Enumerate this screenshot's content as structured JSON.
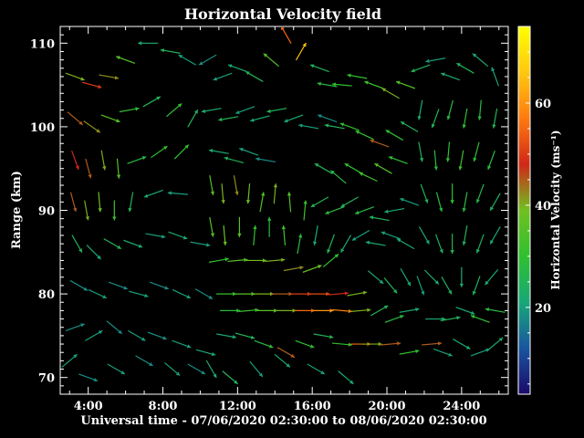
{
  "chart_data": {
    "type": "quiver",
    "title": "Horizontal Velocity field",
    "xlabel": "Universal time - 07/06/2020 02:30:00 to 08/06/2020 02:30:00",
    "ylabel": "Range (km)",
    "xlim": [
      2.5,
      26.5
    ],
    "ylim": [
      68,
      112
    ],
    "x_ticks": [
      4,
      8,
      12,
      16,
      20,
      24
    ],
    "x_tick_labels": [
      "4:00",
      "8:00",
      "12:00",
      "16:00",
      "20:00",
      "24:00"
    ],
    "y_ticks": [
      70,
      80,
      90,
      100,
      110
    ],
    "y_tick_labels": [
      "70",
      "80",
      "90",
      "100",
      "110"
    ],
    "grid": false,
    "colorbar": {
      "label": "Horizontal Velocity (ms⁻¹)",
      "range": [
        3,
        75
      ],
      "ticks": [
        20,
        40,
        60
      ],
      "colormap": [
        "#1a0a6a",
        "#1a55a0",
        "#18a878",
        "#30c030",
        "#70c020",
        "#d02818",
        "#ff7a10",
        "#ffc810",
        "#ffff00"
      ]
    },
    "vectors": {
      "description_units": "x in hours UT, y in km range, speed in m/s, direction in degrees (0 = toward +x / right, 90 = toward +y / up)",
      "points": [
        [
          3.3,
          106,
          40,
          -20
        ],
        [
          4.2,
          105,
          50,
          -15
        ],
        [
          5.1,
          106,
          42,
          -10
        ],
        [
          6.0,
          108,
          35,
          160
        ],
        [
          7.2,
          110,
          22,
          180
        ],
        [
          8.4,
          109,
          25,
          170
        ],
        [
          9.3,
          108,
          20,
          150
        ],
        [
          3.3,
          101,
          45,
          -40
        ],
        [
          4.2,
          100,
          42,
          -35
        ],
        [
          5.2,
          101,
          35,
          -20
        ],
        [
          6.2,
          102,
          30,
          10
        ],
        [
          7.4,
          103,
          25,
          30
        ],
        [
          8.6,
          102,
          30,
          40
        ],
        [
          9.6,
          101,
          25,
          60
        ],
        [
          3.3,
          96,
          48,
          -70
        ],
        [
          4.0,
          95,
          45,
          -75
        ],
        [
          4.8,
          96,
          40,
          -80
        ],
        [
          5.6,
          95,
          35,
          -85
        ],
        [
          6.6,
          96,
          28,
          20
        ],
        [
          7.8,
          97,
          30,
          35
        ],
        [
          9.0,
          97,
          30,
          45
        ],
        [
          3.2,
          91,
          45,
          -75
        ],
        [
          3.9,
          90,
          40,
          -80
        ],
        [
          4.6,
          91,
          38,
          -85
        ],
        [
          5.4,
          90,
          32,
          -90
        ],
        [
          6.3,
          91,
          25,
          -100
        ],
        [
          7.5,
          92,
          22,
          -160
        ],
        [
          8.8,
          92,
          20,
          175
        ],
        [
          3.4,
          86,
          25,
          -60
        ],
        [
          4.3,
          85,
          22,
          -45
        ],
        [
          5.3,
          86,
          25,
          -30
        ],
        [
          6.4,
          86,
          22,
          -20
        ],
        [
          7.6,
          87,
          20,
          -10
        ],
        [
          8.8,
          87,
          22,
          -20
        ],
        [
          10.0,
          86,
          20,
          -10
        ],
        [
          3.5,
          81,
          18,
          -30
        ],
        [
          4.5,
          80,
          20,
          -25
        ],
        [
          5.6,
          81,
          18,
          -20
        ],
        [
          6.7,
          80,
          20,
          -15
        ],
        [
          7.8,
          81,
          18,
          -20
        ],
        [
          9.0,
          80,
          20,
          -25
        ],
        [
          10.2,
          80,
          18,
          -30
        ],
        [
          3.3,
          76,
          18,
          20
        ],
        [
          4.3,
          75,
          20,
          30
        ],
        [
          5.4,
          76,
          18,
          -40
        ],
        [
          6.6,
          75,
          20,
          -30
        ],
        [
          7.7,
          75,
          18,
          -20
        ],
        [
          9.0,
          74,
          20,
          -20
        ],
        [
          10.3,
          73,
          22,
          -15
        ],
        [
          3.0,
          72,
          20,
          40
        ],
        [
          4.0,
          70,
          18,
          -20
        ],
        [
          5.5,
          71,
          20,
          -30
        ],
        [
          7.0,
          72,
          18,
          -30
        ],
        [
          8.5,
          71,
          20,
          -40
        ],
        [
          9.8,
          71,
          18,
          -30
        ],
        [
          10.4,
          108,
          18,
          -150
        ],
        [
          11.2,
          106,
          20,
          -160
        ],
        [
          12.0,
          107,
          22,
          160
        ],
        [
          12.9,
          106,
          25,
          150
        ],
        [
          13.8,
          108,
          35,
          140
        ],
        [
          14.6,
          111,
          55,
          120
        ],
        [
          15.4,
          109,
          65,
          60
        ],
        [
          16.4,
          107,
          25,
          160
        ],
        [
          10.6,
          102,
          22,
          -170
        ],
        [
          11.5,
          101,
          25,
          -170
        ],
        [
          12.4,
          102,
          20,
          -160
        ],
        [
          13.2,
          101,
          22,
          -165
        ],
        [
          14.1,
          102,
          25,
          -170
        ],
        [
          15.0,
          101,
          22,
          -160
        ],
        [
          15.8,
          100,
          20,
          170
        ],
        [
          16.8,
          101,
          18,
          160
        ],
        [
          11.0,
          97,
          22,
          170
        ],
        [
          11.8,
          96,
          25,
          165
        ],
        [
          12.6,
          97,
          20,
          160
        ],
        [
          13.5,
          96,
          18,
          170
        ],
        [
          10.6,
          93,
          35,
          -80
        ],
        [
          11.2,
          92,
          40,
          -85
        ],
        [
          11.9,
          93,
          42,
          -80
        ],
        [
          12.6,
          92,
          38,
          -95
        ],
        [
          13.3,
          91,
          35,
          80
        ],
        [
          14.0,
          92,
          40,
          85
        ],
        [
          14.8,
          91,
          35,
          95
        ],
        [
          15.6,
          90,
          32,
          85
        ],
        [
          10.6,
          88,
          35,
          -80
        ],
        [
          11.3,
          87,
          38,
          -85
        ],
        [
          12.1,
          88,
          36,
          -90
        ],
        [
          12.9,
          87,
          30,
          85
        ],
        [
          13.7,
          88,
          28,
          90
        ],
        [
          14.5,
          87,
          32,
          95
        ],
        [
          15.3,
          86,
          28,
          80
        ],
        [
          11.0,
          84,
          30,
          10
        ],
        [
          12.0,
          84,
          35,
          5
        ],
        [
          13.0,
          84,
          38,
          0
        ],
        [
          14.0,
          84,
          40,
          5
        ],
        [
          15.0,
          83,
          42,
          10
        ],
        [
          16.0,
          83,
          38,
          20
        ],
        [
          17.0,
          84,
          30,
          40
        ],
        [
          11.4,
          80,
          30,
          0
        ],
        [
          12.4,
          80,
          35,
          0
        ],
        [
          13.4,
          80,
          40,
          0
        ],
        [
          14.4,
          80,
          45,
          0
        ],
        [
          15.4,
          80,
          50,
          0
        ],
        [
          16.4,
          80,
          52,
          0
        ],
        [
          17.4,
          80,
          48,
          5
        ],
        [
          18.4,
          80,
          40,
          10
        ],
        [
          11.6,
          78,
          28,
          0
        ],
        [
          12.6,
          78,
          32,
          5
        ],
        [
          13.6,
          78,
          36,
          0
        ],
        [
          14.6,
          78,
          40,
          0
        ],
        [
          15.6,
          78,
          55,
          0
        ],
        [
          16.6,
          78,
          60,
          0
        ],
        [
          17.6,
          78,
          58,
          -5
        ],
        [
          18.6,
          78,
          40,
          5
        ],
        [
          11.4,
          75,
          22,
          -10
        ],
        [
          12.4,
          75,
          25,
          -15
        ],
        [
          13.4,
          74,
          28,
          -20
        ],
        [
          14.6,
          73,
          45,
          -30
        ],
        [
          15.6,
          74,
          30,
          -20
        ],
        [
          16.6,
          75,
          25,
          -10
        ],
        [
          17.6,
          74,
          30,
          -5
        ],
        [
          18.6,
          74,
          55,
          0
        ],
        [
          10.6,
          71,
          22,
          -60
        ],
        [
          11.6,
          70,
          25,
          -40
        ],
        [
          13.0,
          71,
          20,
          -50
        ],
        [
          14.4,
          72,
          22,
          -40
        ],
        [
          16.2,
          71,
          20,
          -30
        ],
        [
          17.8,
          70,
          22,
          -40
        ],
        [
          16.8,
          105,
          28,
          170
        ],
        [
          17.6,
          105,
          30,
          175
        ],
        [
          18.4,
          106,
          30,
          170
        ],
        [
          19.3,
          105,
          32,
          160
        ],
        [
          20.2,
          104,
          40,
          150
        ],
        [
          21.0,
          105,
          35,
          160
        ],
        [
          17.2,
          100,
          25,
          170
        ],
        [
          18.0,
          100,
          30,
          160
        ],
        [
          18.8,
          99,
          30,
          155
        ],
        [
          19.6,
          98,
          45,
          160
        ],
        [
          20.4,
          99,
          30,
          150
        ],
        [
          21.2,
          100,
          25,
          150
        ],
        [
          16.6,
          95,
          25,
          150
        ],
        [
          17.4,
          94,
          28,
          140
        ],
        [
          18.2,
          95,
          30,
          150
        ],
        [
          19.0,
          94,
          32,
          155
        ],
        [
          19.8,
          95,
          35,
          150
        ],
        [
          20.6,
          96,
          30,
          160
        ],
        [
          16.4,
          91,
          25,
          -150
        ],
        [
          17.2,
          90,
          28,
          -160
        ],
        [
          18.0,
          91,
          25,
          -150
        ],
        [
          18.8,
          90,
          28,
          -160
        ],
        [
          19.6,
          89,
          25,
          170
        ],
        [
          20.4,
          90,
          22,
          -170
        ],
        [
          21.2,
          91,
          20,
          160
        ],
        [
          16.2,
          87,
          22,
          -100
        ],
        [
          17.0,
          86,
          25,
          -110
        ],
        [
          17.8,
          86,
          22,
          -120
        ],
        [
          18.6,
          87,
          20,
          -150
        ],
        [
          19.4,
          86,
          22,
          170
        ],
        [
          20.2,
          87,
          20,
          160
        ],
        [
          21.0,
          86,
          22,
          150
        ],
        [
          19.4,
          82,
          22,
          -40
        ],
        [
          20.2,
          81,
          25,
          -50
        ],
        [
          21.0,
          82,
          22,
          -60
        ],
        [
          21.8,
          81,
          20,
          -70
        ],
        [
          19.6,
          78,
          25,
          30
        ],
        [
          20.4,
          77,
          28,
          20
        ],
        [
          21.2,
          78,
          22,
          10
        ],
        [
          19.2,
          74,
          40,
          0
        ],
        [
          20.2,
          74,
          45,
          5
        ],
        [
          21.2,
          73,
          30,
          10
        ],
        [
          22.4,
          74,
          45,
          5
        ],
        [
          21.8,
          107,
          25,
          -160
        ],
        [
          22.6,
          108,
          20,
          -170
        ],
        [
          23.4,
          106,
          22,
          160
        ],
        [
          24.2,
          107,
          25,
          150
        ],
        [
          25.0,
          108,
          22,
          140
        ],
        [
          25.8,
          106,
          20,
          110
        ],
        [
          21.8,
          102,
          22,
          -100
        ],
        [
          22.6,
          101,
          25,
          -110
        ],
        [
          23.4,
          102,
          28,
          -105
        ],
        [
          24.2,
          101,
          30,
          -100
        ],
        [
          25.0,
          102,
          28,
          -95
        ],
        [
          25.8,
          101,
          25,
          -100
        ],
        [
          21.8,
          97,
          25,
          -80
        ],
        [
          22.6,
          96,
          28,
          -85
        ],
        [
          23.3,
          97,
          30,
          -95
        ],
        [
          24.0,
          96,
          32,
          -100
        ],
        [
          24.8,
          97,
          30,
          -105
        ],
        [
          25.6,
          96,
          28,
          -110
        ],
        [
          22.0,
          92,
          25,
          -70
        ],
        [
          22.8,
          91,
          28,
          -75
        ],
        [
          23.5,
          92,
          30,
          -90
        ],
        [
          24.2,
          91,
          28,
          -100
        ],
        [
          25.0,
          92,
          26,
          -110
        ],
        [
          25.8,
          91,
          24,
          -120
        ],
        [
          22.0,
          87,
          22,
          -60
        ],
        [
          22.8,
          86,
          24,
          -70
        ],
        [
          23.5,
          86,
          26,
          -90
        ],
        [
          24.2,
          87,
          25,
          -100
        ],
        [
          25.0,
          86,
          24,
          -110
        ],
        [
          25.8,
          87,
          22,
          -120
        ],
        [
          22.4,
          82,
          22,
          -45
        ],
        [
          23.2,
          81,
          24,
          -60
        ],
        [
          24.0,
          82,
          22,
          -90
        ],
        [
          24.8,
          81,
          24,
          -110
        ],
        [
          25.6,
          82,
          22,
          -130
        ],
        [
          22.6,
          77,
          22,
          0
        ],
        [
          23.4,
          77,
          25,
          10
        ],
        [
          24.2,
          78,
          22,
          -20
        ],
        [
          25.0,
          77,
          30,
          160
        ],
        [
          25.8,
          78,
          28,
          170
        ],
        [
          23.0,
          73,
          20,
          -20
        ],
        [
          24.0,
          74,
          22,
          -30
        ],
        [
          25.0,
          73,
          20,
          20
        ],
        [
          25.8,
          74,
          22,
          40
        ]
      ]
    }
  }
}
